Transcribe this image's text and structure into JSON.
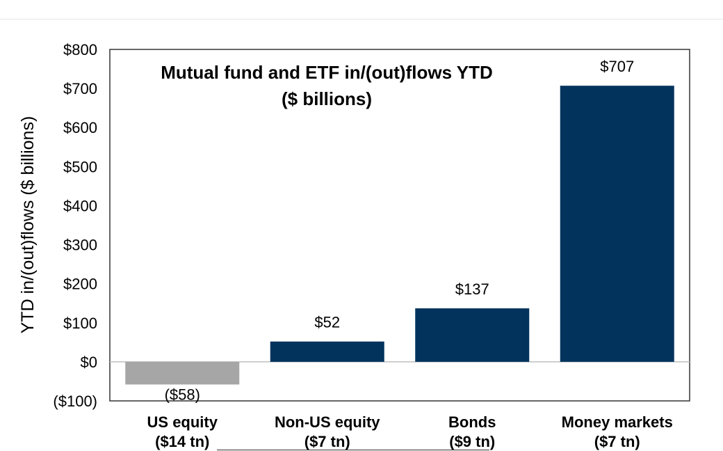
{
  "chart_data": {
    "type": "bar",
    "title_lines": [
      "Mutual fund and ETF in/(out)flows YTD",
      "($ billions)"
    ],
    "ylabel": "YTD in/(out)flows ($ billions)",
    "ylim": [
      -100,
      800
    ],
    "yticks": [
      {
        "value": 800,
        "label": "$800"
      },
      {
        "value": 700,
        "label": "$700"
      },
      {
        "value": 600,
        "label": "$600"
      },
      {
        "value": 500,
        "label": "$500"
      },
      {
        "value": 400,
        "label": "$400"
      },
      {
        "value": 300,
        "label": "$300"
      },
      {
        "value": 200,
        "label": "$200"
      },
      {
        "value": 100,
        "label": "$100"
      },
      {
        "value": 0,
        "label": "$0"
      },
      {
        "value": -100,
        "label": "($100)"
      }
    ],
    "categories": [
      {
        "name": "US equity",
        "sub": "($14 tn)"
      },
      {
        "name": "Non-US equity",
        "sub": "($7 tn)"
      },
      {
        "name": "Bonds",
        "sub": "($9 tn)"
      },
      {
        "name": "Money markets",
        "sub": "($7 tn)"
      }
    ],
    "values": [
      -58,
      52,
      137,
      707
    ],
    "data_labels": [
      "($58)",
      "$52",
      "$137",
      "$707"
    ],
    "colors": {
      "positive": "#02335d",
      "negative": "#a6a6a6",
      "axis": "#333333",
      "zero_line": "#bfbfbf"
    },
    "grid": false
  }
}
